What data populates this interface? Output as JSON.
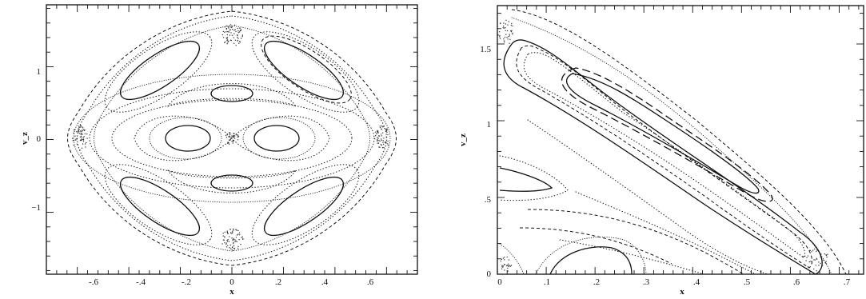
{
  "chart_data": [
    {
      "type": "scatter",
      "description_kind": "surface-of-section",
      "xlabel": "x",
      "ylabel": "v_z",
      "xlim": [
        -0.72,
        0.72
      ],
      "ylim": [
        -1.85,
        1.85
      ],
      "xticks": [
        -0.6,
        -0.4,
        -0.2,
        0,
        0.2,
        0.4,
        0.6
      ],
      "xtick_labels": [
        "-.6",
        "-.4",
        "-.2",
        "0",
        ".2",
        ".4",
        ".6"
      ],
      "yticks": [
        -1,
        0,
        1
      ],
      "ytick_labels": [
        "−1",
        "0",
        "1"
      ],
      "grid": false,
      "series": [
        {
          "style": "solid",
          "values": [
            [
              -0.16,
              0
            ],
            [
              0.16,
              0
            ]
          ]
        },
        {
          "style": "dotted",
          "values": [
            [
              0,
              0.55
            ],
            [
              0,
              -0.55
            ]
          ]
        },
        {
          "style": "solid",
          "values": [
            [
              -0.28,
              0.9
            ],
            [
              0.28,
              0.9
            ],
            [
              -0.28,
              -0.9
            ],
            [
              0.28,
              -0.9
            ]
          ]
        },
        {
          "style": "dotted",
          "values": [
            [
              -0.66,
              0
            ],
            [
              0.66,
              0
            ],
            [
              0,
              1.6
            ],
            [
              0,
              -1.6
            ]
          ]
        }
      ]
    },
    {
      "type": "scatter",
      "description_kind": "surface-of-section",
      "xlabel": "x",
      "ylabel": "v_z",
      "xlim": [
        0,
        0.75
      ],
      "ylim": [
        0,
        1.75
      ],
      "xticks": [
        0,
        0.1,
        0.2,
        0.3,
        0.4,
        0.5,
        0.6,
        0.7
      ],
      "xtick_labels": [
        "0",
        ".1",
        ".2",
        ".3",
        ".4",
        ".5",
        ".6",
        ".7"
      ],
      "yticks": [
        0.5,
        1,
        1.5
      ],
      "ytick_labels": [
        ".5",
        "1",
        "1.5"
      ],
      "grid": false,
      "series": [
        {
          "style": "solid",
          "values": [
            [
              0.05,
              1.62
            ],
            [
              0.62,
              0.02
            ]
          ]
        },
        {
          "style": "dashed",
          "values": [
            [
              0.08,
              1.52
            ],
            [
              0.57,
              0.1
            ]
          ]
        },
        {
          "style": "long-dashed",
          "values": [
            [
              0.15,
              1.4
            ],
            [
              0.55,
              0.52
            ]
          ]
        },
        {
          "style": "dotted",
          "values": [
            [
              0.1,
              0.9
            ],
            [
              0.25,
              0.45
            ]
          ]
        },
        {
          "style": "solid",
          "values": [
            [
              0.11,
              0
            ],
            [
              0.25,
              0.05
            ]
          ]
        }
      ]
    }
  ]
}
